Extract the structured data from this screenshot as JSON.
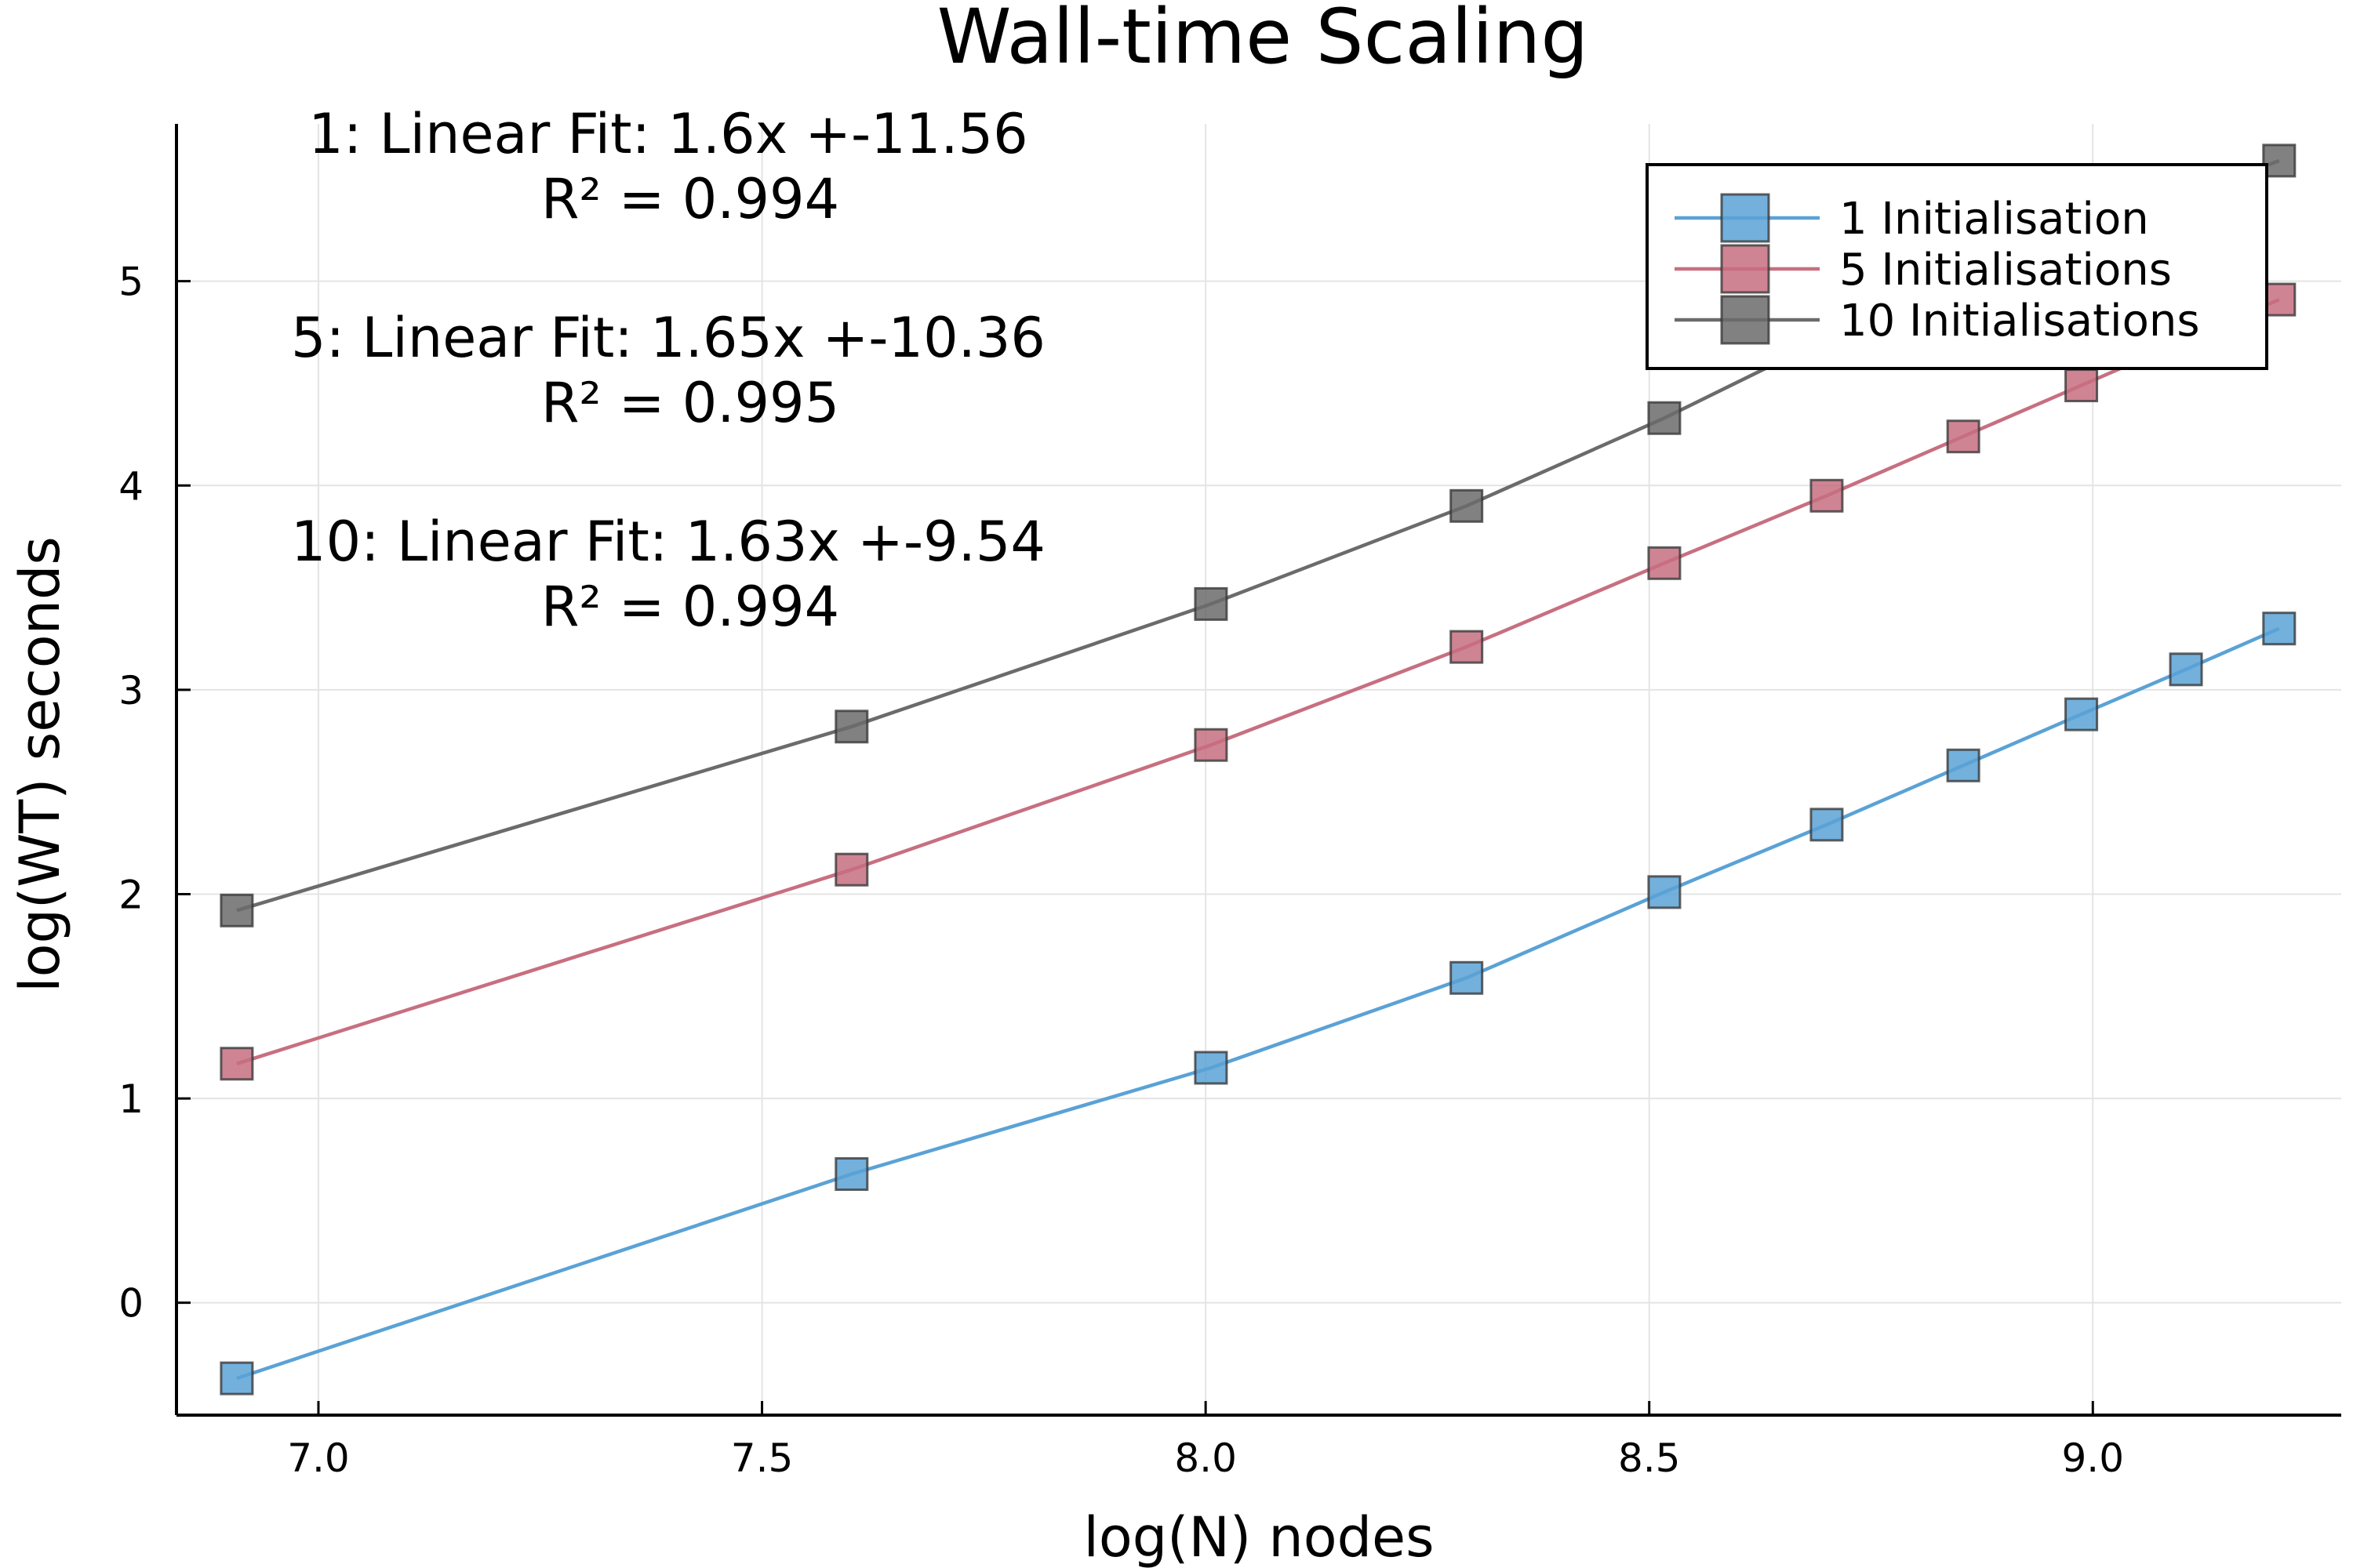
{
  "chart_data": {
    "type": "scatter",
    "title": "Wall-time Scaling",
    "xlabel": "log(N) nodes",
    "ylabel": "log(WT) seconds",
    "xlim": [
      6.84,
      9.28
    ],
    "ylim": [
      -0.55,
      5.77
    ],
    "xticks": [
      7.0,
      7.5,
      8.0,
      8.5,
      9.0
    ],
    "xtick_labels": [
      "7.0",
      "7.5",
      "8.0",
      "8.5",
      "9.0"
    ],
    "yticks": [
      0,
      1,
      2,
      3,
      4,
      5
    ],
    "ytick_labels": [
      "0",
      "1",
      "2",
      "3",
      "4",
      "5"
    ],
    "grid": true,
    "legend_position": "top-right",
    "series": [
      {
        "name": "1 Initialisation",
        "color": "#5aa2d6",
        "x": [
          6.908,
          7.601,
          8.006,
          8.294,
          8.517,
          8.7,
          8.854,
          8.987,
          9.105,
          9.21
        ],
        "y": [
          -0.37,
          0.63,
          1.15,
          1.59,
          2.01,
          2.34,
          2.63,
          2.88,
          3.1,
          3.3
        ]
      },
      {
        "name": "5 Initialisations",
        "color": "#c76f80",
        "x": [
          6.908,
          7.601,
          8.006,
          8.294,
          8.517,
          8.7,
          8.854,
          8.987,
          9.21
        ],
        "y": [
          1.17,
          2.12,
          2.73,
          3.21,
          3.62,
          3.95,
          4.24,
          4.49,
          4.91
        ]
      },
      {
        "name": "10 Initialisations",
        "color": "#6b6b6b",
        "x": [
          6.908,
          7.601,
          8.006,
          8.294,
          8.517,
          8.7,
          9.21
        ],
        "y": [
          1.92,
          2.82,
          3.42,
          3.9,
          4.33,
          4.72,
          5.59
        ]
      }
    ],
    "annotations": [
      {
        "line1": "1: Linear Fit: 1.6x +-11.56",
        "line2": "R² = 0.994"
      },
      {
        "line1": "5: Linear Fit: 1.65x +-10.36",
        "line2": "R² = 0.995"
      },
      {
        "line1": "10: Linear Fit: 1.63x +-9.54",
        "line2": "R² = 0.994"
      }
    ]
  }
}
